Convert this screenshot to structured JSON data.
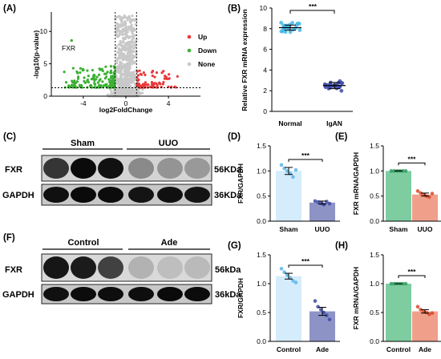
{
  "panels": {
    "A": {
      "letter": "(A)"
    },
    "B": {
      "letter": "(B)"
    },
    "C": {
      "letter": "(C)"
    },
    "D": {
      "letter": "(D)"
    },
    "E": {
      "letter": "(E)"
    },
    "F": {
      "letter": "(F)"
    },
    "G": {
      "letter": "(G)"
    },
    "H": {
      "letter": "(H)"
    }
  },
  "western_c": {
    "groups": [
      "Sham",
      "UUO"
    ],
    "rows": [
      {
        "label": "FXR",
        "size": "56KDa"
      },
      {
        "label": "GAPDH",
        "size": "36KDa"
      }
    ]
  },
  "western_f": {
    "groups": [
      "Control",
      "Ade"
    ],
    "rows": [
      {
        "label": "FXR",
        "size": "56kDa"
      },
      {
        "label": "GAPDH",
        "size": "36kDa"
      }
    ]
  },
  "colors": {
    "up": "#e8393a",
    "down": "#3cb034",
    "none": "#c8c8c8",
    "light_blue": "#d4ecfb",
    "violet": "#8e93c6",
    "green": "#7dcda0",
    "salmon": "#f0a08a",
    "cyan": "#43b7e8",
    "navy": "#3d4aa8"
  },
  "chart_data": [
    {
      "id": "A",
      "type": "scatter",
      "xlabel": "log2FoldChange",
      "ylabel": "-log10(p-value)",
      "xlim": [
        -7,
        7
      ],
      "ylim": [
        0,
        13
      ],
      "x_ticks": [
        -4,
        0,
        4
      ],
      "y_ticks": [
        0,
        5,
        10
      ],
      "legend": [
        "Up",
        "Down",
        "None"
      ],
      "legend_position": "top-right",
      "annotation": {
        "text": "FXR",
        "x": -5.1,
        "y": 8.6
      },
      "thresholds": {
        "x": [
          -1,
          1
        ],
        "y": 1.3
      }
    },
    {
      "id": "B",
      "type": "scatter",
      "ylabel": "Relative FXR mRNA expression",
      "categories": [
        "Normal",
        "IgAN"
      ],
      "means": [
        8.1,
        2.5
      ],
      "sem": [
        0.25,
        0.3
      ],
      "ylim": [
        0,
        10
      ],
      "y_ticks": [
        0,
        2,
        4,
        6,
        8,
        10
      ],
      "significance": "***"
    },
    {
      "id": "D",
      "type": "bar",
      "ylabel": "FXR/GAPDH",
      "categories": [
        "Sham",
        "UUO"
      ],
      "values": [
        1.0,
        0.37
      ],
      "errors": [
        0.07,
        0.03
      ],
      "points": [
        [
          1.12,
          1.05,
          1.0,
          0.95,
          0.88,
          1.02
        ],
        [
          0.4,
          0.38,
          0.36,
          0.33,
          0.39,
          0.35
        ]
      ],
      "ylim": [
        0,
        1.5
      ],
      "y_ticks": [
        0.0,
        0.5,
        1.0,
        1.5
      ],
      "significance": "***"
    },
    {
      "id": "E",
      "type": "bar",
      "ylabel": "FXR mRNA/GAPDH",
      "categories": [
        "Sham",
        "UUO"
      ],
      "values": [
        1.0,
        0.53
      ],
      "errors": [
        0.0,
        0.03
      ],
      "points": [
        [
          1.0,
          1.0,
          1.0,
          1.0,
          1.0,
          1.0
        ],
        [
          0.6,
          0.56,
          0.53,
          0.5,
          0.48,
          0.55
        ]
      ],
      "ylim": [
        0,
        1.5
      ],
      "y_ticks": [
        0.0,
        0.5,
        1.0,
        1.5
      ],
      "significance": "***"
    },
    {
      "id": "G",
      "type": "bar",
      "ylabel": "FXR/GAPDH",
      "categories": [
        "Control",
        "Ade"
      ],
      "values": [
        1.13,
        0.52
      ],
      "errors": [
        0.05,
        0.07
      ],
      "points": [
        [
          1.26,
          1.2,
          1.15,
          1.1,
          1.05,
          1.02
        ],
        [
          0.7,
          0.6,
          0.55,
          0.5,
          0.45,
          0.38
        ]
      ],
      "ylim": [
        0,
        1.5
      ],
      "y_ticks": [
        0.0,
        0.5,
        1.0,
        1.5
      ],
      "significance": "***"
    },
    {
      "id": "H",
      "type": "bar",
      "ylabel": "FXR mRNA/GAPDH",
      "categories": [
        "Control",
        "Ade"
      ],
      "values": [
        1.0,
        0.52
      ],
      "errors": [
        0.0,
        0.03
      ],
      "points": [
        [
          1.0,
          1.0,
          1.0,
          1.0,
          1.0,
          1.0
        ],
        [
          0.6,
          0.55,
          0.52,
          0.5,
          0.47,
          0.49
        ]
      ],
      "ylim": [
        0,
        1.5
      ],
      "y_ticks": [
        0.0,
        0.5,
        1.0,
        1.5
      ],
      "significance": "***"
    }
  ]
}
